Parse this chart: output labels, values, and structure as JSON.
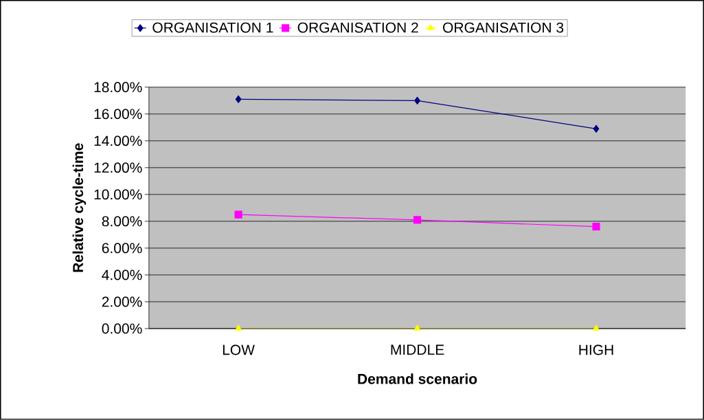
{
  "chart_data": {
    "type": "line",
    "xlabel": "Demand scenario",
    "ylabel": "Relative cycle-time",
    "categories": [
      "LOW",
      "MIDDLE",
      "HIGH"
    ],
    "series": [
      {
        "name": "ORGANISATION 1",
        "color": "#000080",
        "marker": "diamond",
        "values": [
          17.1,
          17.0,
          14.9
        ]
      },
      {
        "name": "ORGANISATION 2",
        "color": "#ff00ff",
        "marker": "square",
        "values": [
          8.5,
          8.1,
          7.6
        ]
      },
      {
        "name": "ORGANISATION 3",
        "color": "#ffff00",
        "marker": "triangle",
        "values": [
          0,
          0,
          0
        ]
      }
    ],
    "ylim": [
      0,
      18
    ],
    "yticks": [
      {
        "value": 0,
        "label": "0.00%"
      },
      {
        "value": 2,
        "label": "2.00%"
      },
      {
        "value": 4,
        "label": "4.00%"
      },
      {
        "value": 6,
        "label": "6.00%"
      },
      {
        "value": 8,
        "label": "8.00%"
      },
      {
        "value": 10,
        "label": "10.00%"
      },
      {
        "value": 12,
        "label": "12.00%"
      },
      {
        "value": 14,
        "label": "14.00%"
      },
      {
        "value": 16,
        "label": "16.00%"
      },
      {
        "value": 18,
        "label": "18.00%"
      }
    ],
    "grid": "y",
    "legend": "top",
    "line_style": "solid"
  }
}
